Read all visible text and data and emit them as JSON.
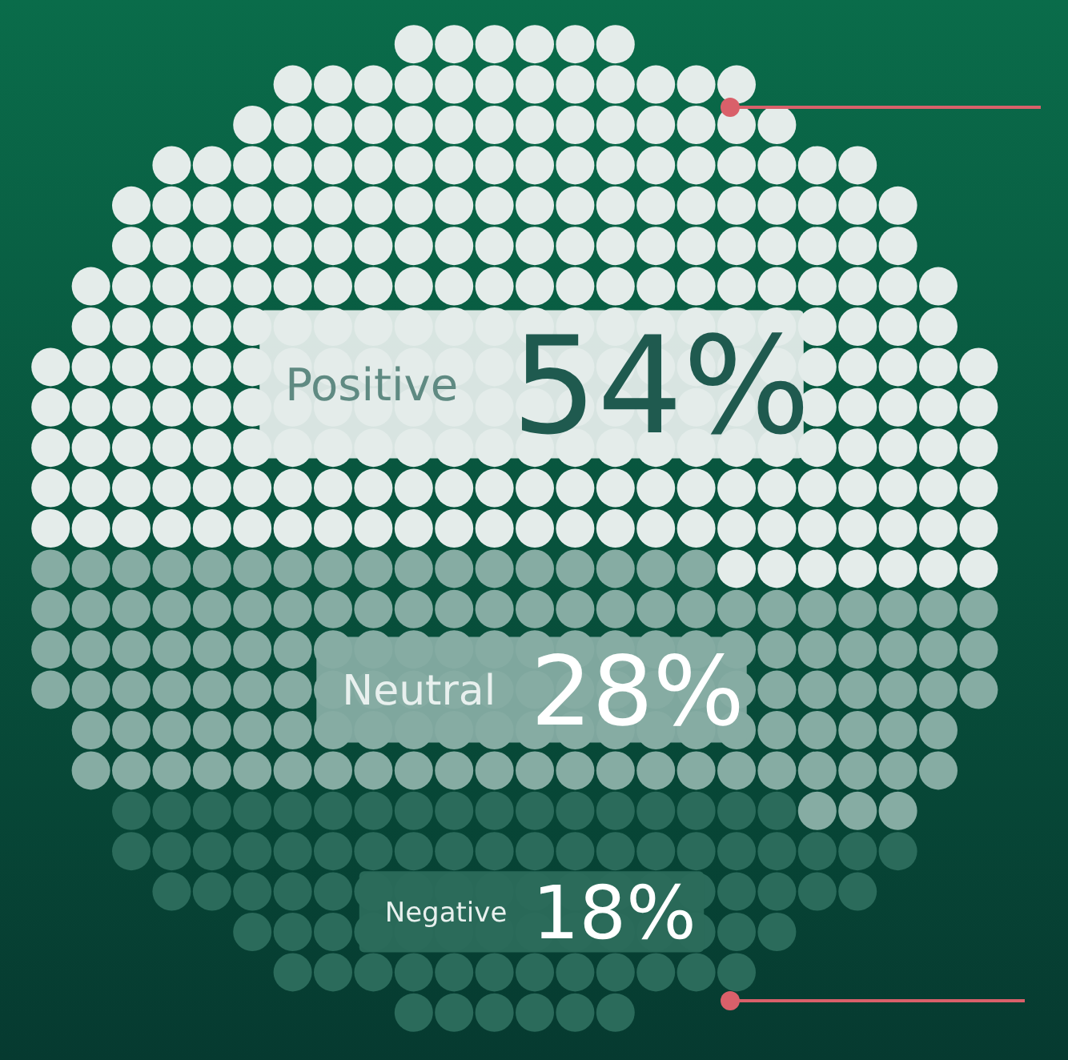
{
  "chart_data": {
    "type": "other",
    "categories": [
      "Positive",
      "Neutral",
      "Negative"
    ],
    "values": [
      54,
      28,
      18
    ],
    "colors": [
      "#e4ecea",
      "#86aca3",
      "#2b6b5b"
    ],
    "value_labels": [
      "54%",
      "28%",
      "18%"
    ]
  }
}
